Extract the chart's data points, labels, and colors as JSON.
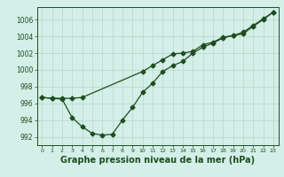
{
  "xlabel": "Graphe pression niveau de la mer (hPa)",
  "ylabel": "",
  "bg_color": "#d4eee8",
  "grid_color": "#b8d8cc",
  "line_color": "#1e4d1e",
  "xlim": [
    -0.5,
    23.5
  ],
  "ylim": [
    991.0,
    1007.5
  ],
  "xticks": [
    0,
    1,
    2,
    3,
    4,
    5,
    6,
    7,
    8,
    9,
    10,
    11,
    12,
    13,
    14,
    15,
    16,
    17,
    18,
    19,
    20,
    21,
    22,
    23
  ],
  "yticks": [
    992,
    994,
    996,
    998,
    1000,
    1002,
    1004,
    1006
  ],
  "line1_x": [
    0,
    1,
    2,
    3,
    4,
    5,
    6,
    7,
    8,
    9,
    10,
    11,
    12,
    13,
    14,
    15,
    16,
    17,
    18,
    19,
    20,
    21,
    22,
    23
  ],
  "line1_y": [
    996.7,
    996.6,
    996.5,
    994.3,
    993.2,
    992.4,
    992.2,
    992.3,
    994.0,
    995.5,
    997.3,
    998.4,
    999.8,
    1000.5,
    1001.0,
    1002.0,
    1002.7,
    1003.2,
    1003.8,
    1004.1,
    1004.3,
    1005.2,
    1006.0,
    1006.9
  ],
  "line2_x": [
    0,
    1,
    2,
    3,
    4,
    10,
    11,
    12,
    13,
    14,
    15,
    16,
    17,
    18,
    19,
    20,
    21,
    22,
    23
  ],
  "line2_y": [
    996.7,
    996.6,
    996.6,
    996.6,
    996.7,
    999.8,
    1000.5,
    1001.2,
    1001.9,
    1002.0,
    1002.2,
    1003.0,
    1003.3,
    1003.9,
    1004.1,
    1004.5,
    1005.3,
    1006.1,
    1006.9
  ],
  "marker": "D",
  "markersize": 2.5,
  "linewidth": 0.9,
  "xlabel_fontsize": 7,
  "ytick_fontsize": 5.5,
  "xtick_fontsize": 4.5
}
